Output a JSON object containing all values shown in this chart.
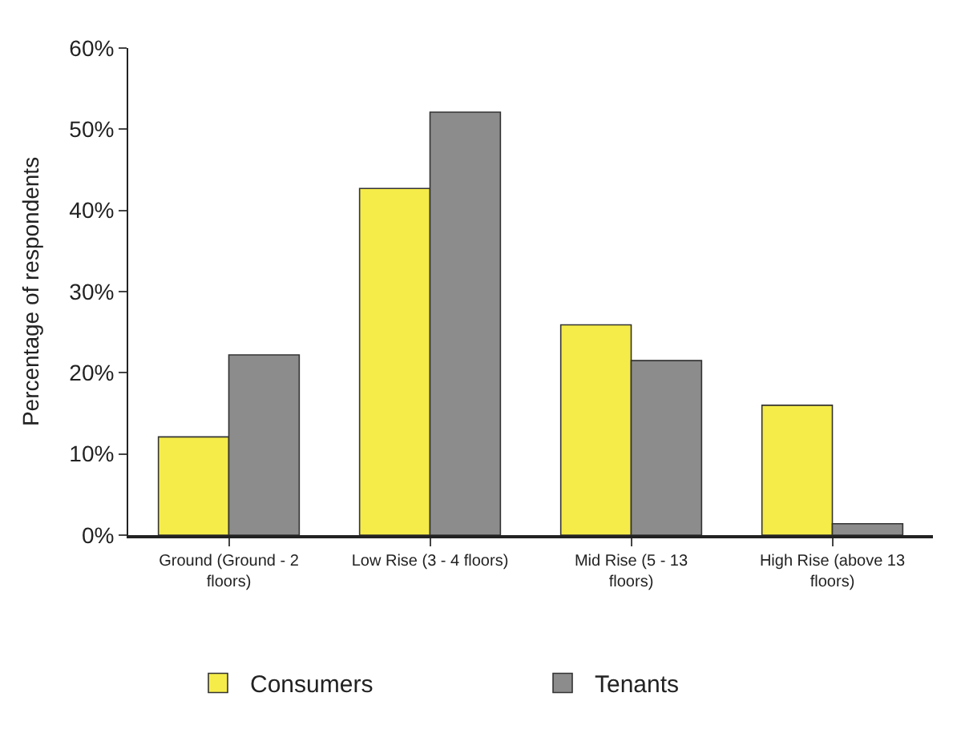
{
  "chart_data": {
    "type": "bar",
    "ylabel": "Percentage of respondents",
    "categories": [
      "Ground (Ground - 2 floors)",
      "Low Rise (3 - 4 floors)",
      "Mid Rise (5 - 13 floors)",
      "High Rise (above 13 floors)"
    ],
    "series": [
      {
        "name": "Consumers",
        "color": "#f5ec4a",
        "values": [
          12.1,
          42.7,
          25.9,
          16.0
        ]
      },
      {
        "name": "Tenants",
        "color": "#8c8c8c",
        "values": [
          22.2,
          52.1,
          21.5,
          1.4
        ]
      }
    ],
    "ylim": [
      0,
      60
    ],
    "yticks": [
      {
        "value": 0,
        "label": "0%"
      },
      {
        "value": 10,
        "label": "10%"
      },
      {
        "value": 20,
        "label": "20%"
      },
      {
        "value": 30,
        "label": "30%"
      },
      {
        "value": 40,
        "label": "40%"
      },
      {
        "value": 50,
        "label": "50%"
      },
      {
        "value": 60,
        "label": "60%"
      }
    ],
    "legend": "bottom"
  }
}
